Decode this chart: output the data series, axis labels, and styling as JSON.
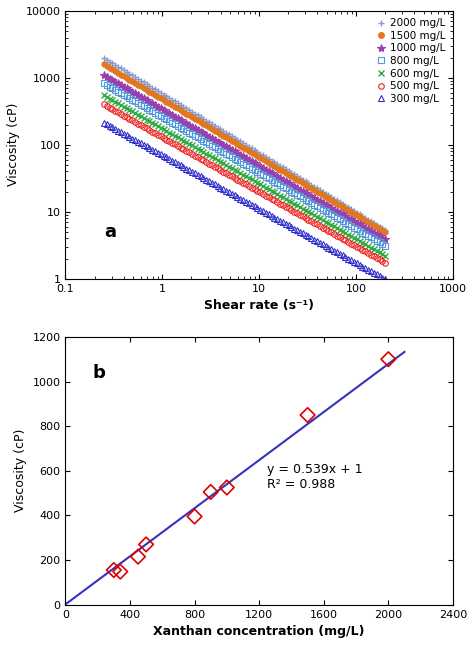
{
  "panel_a": {
    "title": "a",
    "xlabel": "Shear rate (s⁻¹)",
    "ylabel": "Viscosity (cP)",
    "xlim": [
      0.1,
      1000
    ],
    "ylim": [
      1,
      10000
    ],
    "series": [
      {
        "label": "2000 mg/L",
        "color": "#8899cc",
        "marker": "+",
        "filled": null,
        "K": 580,
        "n": 0.115
      },
      {
        "label": "1500 mg/L",
        "color": "#e07820",
        "marker": "o",
        "filled": true,
        "K": 480,
        "n": 0.135
      },
      {
        "label": "1000 mg/L",
        "color": "#9940b0",
        "marker": "*",
        "filled": null,
        "K": 340,
        "n": 0.155
      },
      {
        "label": "800 mg/L",
        "color": "#5599dd",
        "marker": "s",
        "filled": false,
        "K": 260,
        "n": 0.165
      },
      {
        "label": "600 mg/L",
        "color": "#33aa44",
        "marker": "x",
        "filled": null,
        "K": 175,
        "n": 0.175
      },
      {
        "label": "500 mg/L",
        "color": "#ee2222",
        "marker": "o",
        "filled": false,
        "K": 130,
        "n": 0.185
      },
      {
        "label": "300 mg/L",
        "color": "#3333cc",
        "marker": "^",
        "filled": false,
        "K": 70,
        "n": 0.195
      }
    ],
    "shear_start": 0.25,
    "shear_end": 200,
    "n_points": 100
  },
  "panel_b": {
    "title": "b",
    "xlabel": "Xanthan concentration (mg/L)",
    "ylabel": "Viscosity (cP)",
    "xlim": [
      0,
      2400
    ],
    "ylim": [
      0,
      1200
    ],
    "xticks": [
      0,
      400,
      800,
      1200,
      1600,
      2000,
      2400
    ],
    "yticks": [
      0,
      200,
      400,
      600,
      800,
      1000,
      1200
    ],
    "equation": "y = 0.539x + 1",
    "r2": "R² = 0.988",
    "fit_slope": 0.539,
    "fit_intercept": 1,
    "data_x": [
      300,
      340,
      450,
      500,
      800,
      900,
      1000,
      1500,
      2000
    ],
    "data_y": [
      155,
      148,
      215,
      270,
      395,
      505,
      525,
      850,
      1100
    ],
    "line_color": "#3333bb",
    "marker_color": "#dd0000",
    "marker": "D"
  }
}
